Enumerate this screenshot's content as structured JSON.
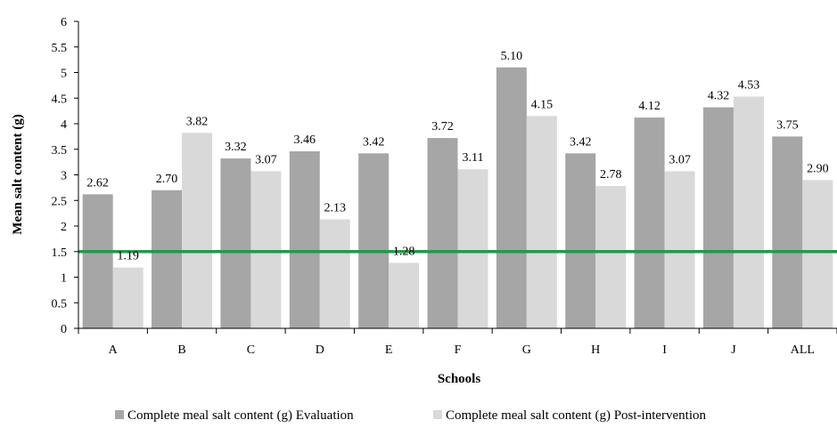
{
  "chart_data": {
    "type": "bar",
    "xlabel": "Schools",
    "ylabel": "Mean salt content (g)",
    "ylim": [
      0,
      6
    ],
    "yticks": [
      "0",
      "0.5",
      "1",
      "1.5",
      "2",
      "2.5",
      "3",
      "3.5",
      "4",
      "4.5",
      "5",
      "5.5",
      "6"
    ],
    "categories": [
      "A",
      "B",
      "C",
      "D",
      "E",
      "F",
      "G",
      "H",
      "I",
      "J",
      "ALL"
    ],
    "series": [
      {
        "name": "Complete meal salt content (g) Evaluation",
        "color": "#a6a6a6",
        "values": [
          2.62,
          2.7,
          3.32,
          3.46,
          3.42,
          3.72,
          5.1,
          3.42,
          4.12,
          4.32,
          3.75
        ],
        "labels": [
          "2.62",
          "2.70",
          "3.32",
          "3.46",
          "3.42",
          "3.72",
          "5.10",
          "3.42",
          "4.12",
          "4.32",
          "3.75"
        ]
      },
      {
        "name": "Complete meal salt content (g) Post-intervention",
        "color": "#d9d9d9",
        "values": [
          1.19,
          3.82,
          3.07,
          2.13,
          1.28,
          3.11,
          4.15,
          2.78,
          3.07,
          4.53,
          2.9
        ],
        "labels": [
          "1.19",
          "3.82",
          "3.07",
          "2.13",
          "1.28",
          "3.11",
          "4.15",
          "2.78",
          "3.07",
          "4.53",
          "2.90"
        ]
      }
    ],
    "reference_line": {
      "value": 1.5,
      "color": "#1a9e4a"
    },
    "legend_position": "bottom",
    "grid": false
  }
}
